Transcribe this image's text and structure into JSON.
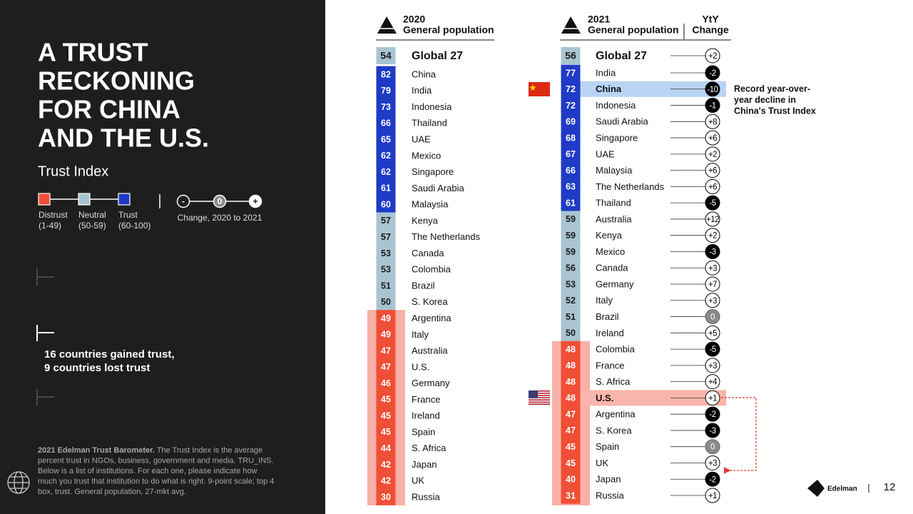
{
  "title_lines": [
    "A TRUST",
    "RECKONING",
    "FOR CHINA",
    "AND THE U.S."
  ],
  "subtitle": "Trust Index",
  "legend": [
    {
      "name": "Distrust",
      "range": "(1-49)",
      "min": 1,
      "max": 49,
      "color": "#f04e37",
      "band": "#f7b1a6",
      "text": "#ffffff"
    },
    {
      "name": "Neutral",
      "range": "(50-59)",
      "min": 50,
      "max": 59,
      "color": "#a9c4d1",
      "text": "#1a1a1a"
    },
    {
      "name": "Trust",
      "range": "(60-100)",
      "min": 60,
      "max": 100,
      "color": "#1f3bc6",
      "text": "#ffffff"
    }
  ],
  "change_legend": {
    "minus": "-",
    "zero": "0",
    "plus": "+",
    "label": "Change, 2020 to 2021"
  },
  "summary": [
    "16 countries gained trust,",
    "9 countries lost trust"
  ],
  "footnote": {
    "bold": "2021 Edelman Trust Barometer.",
    "lines": [
      " The Trust Index is the average",
      "percent trust in NGOs, business, government and media. TRU_INS.",
      "Below is a list of institutions. For each one, please indicate how",
      "much you trust that institution to do what is right. 9-point scale; top 4",
      "box, trust. General population, 27-mkt avg."
    ]
  },
  "table_2020": {
    "year": "2020",
    "population": "General population",
    "global": {
      "name": "Global 27",
      "value": 54
    },
    "rows": [
      {
        "name": "China",
        "value": 82
      },
      {
        "name": "India",
        "value": 79
      },
      {
        "name": "Indonesia",
        "value": 73
      },
      {
        "name": "Thailand",
        "value": 66
      },
      {
        "name": "UAE",
        "value": 65
      },
      {
        "name": "Mexico",
        "value": 62
      },
      {
        "name": "Singapore",
        "value": 62
      },
      {
        "name": "Saudi Arabia",
        "value": 61
      },
      {
        "name": "Malaysia",
        "value": 60
      },
      {
        "name": "Kenya",
        "value": 57
      },
      {
        "name": "The Netherlands",
        "value": 57
      },
      {
        "name": "Canada",
        "value": 53
      },
      {
        "name": "Colombia",
        "value": 53
      },
      {
        "name": "Brazil",
        "value": 51
      },
      {
        "name": "S. Korea",
        "value": 50
      },
      {
        "name": "Argentina",
        "value": 49
      },
      {
        "name": "Italy",
        "value": 49
      },
      {
        "name": "Australia",
        "value": 47
      },
      {
        "name": "U.S.",
        "value": 47
      },
      {
        "name": "Germany",
        "value": 46
      },
      {
        "name": "France",
        "value": 45
      },
      {
        "name": "Ireland",
        "value": 45
      },
      {
        "name": "Spain",
        "value": 45
      },
      {
        "name": "S. Africa",
        "value": 44
      },
      {
        "name": "Japan",
        "value": 42
      },
      {
        "name": "UK",
        "value": 42
      },
      {
        "name": "Russia",
        "value": 30
      }
    ]
  },
  "table_2021": {
    "year": "2021",
    "population": "General population",
    "change_header": [
      "YtY",
      "Change"
    ],
    "global": {
      "name": "Global 27",
      "value": 56,
      "change": 2,
      "change_label": "+2"
    },
    "rows": [
      {
        "name": "India",
        "value": 77,
        "change": -2,
        "change_label": "-2"
      },
      {
        "name": "China",
        "value": 72,
        "change": -10,
        "change_label": "-10",
        "highlight": "#b8d4f5"
      },
      {
        "name": "Indonesia",
        "value": 72,
        "change": -1,
        "change_label": "-1"
      },
      {
        "name": "Saudi Arabia",
        "value": 69,
        "change": 8,
        "change_label": "+8"
      },
      {
        "name": "Singapore",
        "value": 68,
        "change": 6,
        "change_label": "+6"
      },
      {
        "name": "UAE",
        "value": 67,
        "change": 2,
        "change_label": "+2"
      },
      {
        "name": "Malaysia",
        "value": 66,
        "change": 6,
        "change_label": "+6"
      },
      {
        "name": "The Netherlands",
        "value": 63,
        "change": 6,
        "change_label": "+6"
      },
      {
        "name": "Thailand",
        "value": 61,
        "change": -5,
        "change_label": "-5"
      },
      {
        "name": "Australia",
        "value": 59,
        "change": 12,
        "change_label": "+12"
      },
      {
        "name": "Kenya",
        "value": 59,
        "change": 2,
        "change_label": "+2"
      },
      {
        "name": "Mexico",
        "value": 59,
        "change": -3,
        "change_label": "-3"
      },
      {
        "name": "Canada",
        "value": 56,
        "change": 3,
        "change_label": "+3"
      },
      {
        "name": "Germany",
        "value": 53,
        "change": 7,
        "change_label": "+7"
      },
      {
        "name": "Italy",
        "value": 52,
        "change": 3,
        "change_label": "+3"
      },
      {
        "name": "Brazil",
        "value": 51,
        "change": 0,
        "change_label": "0"
      },
      {
        "name": "Ireland",
        "value": 50,
        "change": 5,
        "change_label": "+5"
      },
      {
        "name": "Colombia",
        "value": 48,
        "change": -5,
        "change_label": "-5"
      },
      {
        "name": "France",
        "value": 48,
        "change": 3,
        "change_label": "+3"
      },
      {
        "name": "S. Africa",
        "value": 48,
        "change": 4,
        "change_label": "+4"
      },
      {
        "name": "U.S.",
        "value": 48,
        "change": 1,
        "change_label": "+1",
        "highlight": "#f9b5ab"
      },
      {
        "name": "Argentina",
        "value": 47,
        "change": -2,
        "change_label": "-2"
      },
      {
        "name": "S. Korea",
        "value": 47,
        "change": -3,
        "change_label": "-3"
      },
      {
        "name": "Spain",
        "value": 45,
        "change": 0,
        "change_label": "0"
      },
      {
        "name": "UK",
        "value": 45,
        "change": 3,
        "change_label": "+3"
      },
      {
        "name": "Japan",
        "value": 40,
        "change": -2,
        "change_label": "-2"
      },
      {
        "name": "Russia",
        "value": 31,
        "change": 1,
        "change_label": "+1"
      }
    ]
  },
  "annotation": [
    "Record year-over-",
    "year decline in",
    "China's Trust Index"
  ],
  "logo": "Edelman",
  "page_number": "12"
}
